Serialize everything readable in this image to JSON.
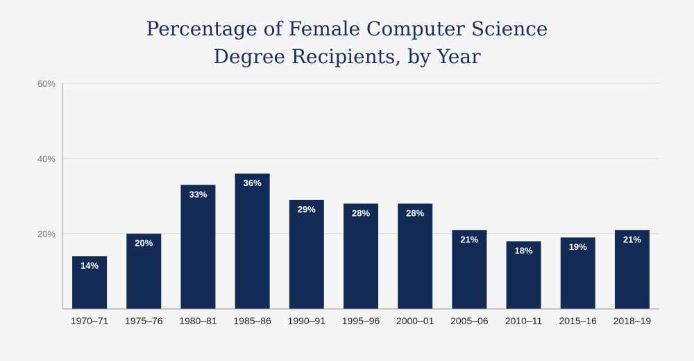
{
  "chart_data": {
    "type": "bar",
    "title_lines": [
      "Percentage of Female Computer Science",
      "Degree Recipients, by Year"
    ],
    "xlabel": "",
    "ylabel": "",
    "ylim": [
      0,
      60
    ],
    "yticks": [
      20,
      40,
      60
    ],
    "ytick_labels": [
      "20%",
      "40%",
      "60%"
    ],
    "grid": true,
    "bar_color": "#132a55",
    "categories": [
      "1970–71",
      "1975–76",
      "1980–81",
      "1985–86",
      "1990–91",
      "1995–96",
      "2000–01",
      "2005–06",
      "2010–11",
      "2015–16",
      "2018–19"
    ],
    "values": [
      14,
      20,
      33,
      36,
      29,
      28,
      28,
      21,
      18,
      19,
      21
    ],
    "value_labels": [
      "14%",
      "20%",
      "33%",
      "36%",
      "29%",
      "28%",
      "28%",
      "21%",
      "18%",
      "19%",
      "21%"
    ]
  }
}
